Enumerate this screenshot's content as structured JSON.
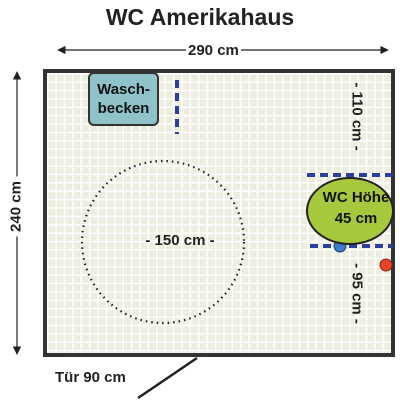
{
  "title": "WC Amerikahaus",
  "dimensions": {
    "width_label": "290 cm",
    "height_label": "240 cm",
    "top_clearance_label": "- 110 cm -",
    "bottom_clearance_label": "- 95 cm -"
  },
  "fixtures": {
    "sink_line1": "Wasch-",
    "sink_line2": "becken",
    "wc_line1": "WC Höhe",
    "wc_line2": "45 cm"
  },
  "turning_circle_label": "- 150 cm -",
  "door_label": "Tür 90 cm",
  "colors": {
    "floor": "#eeeee0",
    "grid": "#ffffff",
    "sink": "#8fc3c9",
    "wc": "#a6c83c",
    "grab_bar": "#2a3f9e",
    "button": "#3a7ec8",
    "alarm": "#e8442a"
  },
  "icons": [
    "arrow-icon",
    "grab-bar-icon",
    "flush-button-icon",
    "alarm-button-icon",
    "door-icon"
  ]
}
